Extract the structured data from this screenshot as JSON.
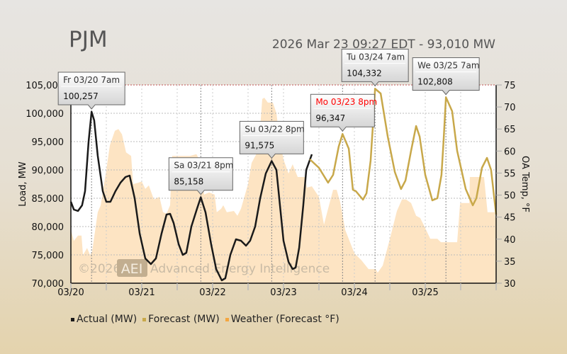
{
  "header": {
    "title": "PJM",
    "subtitle": "2026 Mar 23 09:27 EDT - 93,010 MW"
  },
  "watermark": {
    "copyright": "©2026",
    "logo": "AEI",
    "name": "Advanced Energy Intelligence"
  },
  "chart_data": {
    "type": "line",
    "ylabel": "Load, MW",
    "y2label": "OA Temp, °F",
    "ylim": [
      70000,
      105000
    ],
    "y2lim": [
      30,
      75
    ],
    "xlim_hours": [
      0,
      144
    ],
    "y_ticks": [
      "70,000",
      "75,000",
      "80,000",
      "85,000",
      "90,000",
      "95,000",
      "100,000",
      "105,000"
    ],
    "y2_ticks": [
      "30",
      "35",
      "40",
      "45",
      "50",
      "55",
      "60",
      "65",
      "70",
      "75"
    ],
    "x_ticks": [
      "03/20",
      "03/21",
      "03/22",
      "03/23",
      "03/24",
      "03/25"
    ],
    "legend": [
      "Actual (MW)",
      "Forecast (MW)",
      "Weather (Forecast °F)"
    ],
    "colors": {
      "actual": "#1a1a1a",
      "forecast": "#c8a84a",
      "weather": "#fde4c3",
      "weather_legend": "#f4a640",
      "highlight": "#ff0000"
    },
    "series": [
      {
        "name": "Actual (MW)",
        "points": [
          [
            0,
            84375
          ],
          [
            1,
            83000
          ],
          [
            2.4,
            82750
          ],
          [
            3.8,
            83750
          ],
          [
            4.8,
            86250
          ],
          [
            6,
            95000
          ],
          [
            7,
            100257
          ],
          [
            7.9,
            98750
          ],
          [
            9.1,
            92500
          ],
          [
            10.8,
            86250
          ],
          [
            12,
            84375
          ],
          [
            13.4,
            84375
          ],
          [
            15.1,
            86250
          ],
          [
            16.8,
            87750
          ],
          [
            18.5,
            88750
          ],
          [
            19.9,
            89000
          ],
          [
            21.6,
            85000
          ],
          [
            23.3,
            78750
          ],
          [
            25.2,
            74375
          ],
          [
            27.1,
            73375
          ],
          [
            28.8,
            74375
          ],
          [
            30.7,
            78750
          ],
          [
            32.4,
            82125
          ],
          [
            33.6,
            82250
          ],
          [
            34.8,
            80625
          ],
          [
            36.5,
            76875
          ],
          [
            37.9,
            75000
          ],
          [
            39.1,
            75375
          ],
          [
            40.8,
            80000
          ],
          [
            42.7,
            83125
          ],
          [
            44,
            85158
          ],
          [
            45.6,
            82500
          ],
          [
            47.5,
            76875
          ],
          [
            49.2,
            72500
          ],
          [
            51.1,
            70500
          ],
          [
            52.3,
            70875
          ],
          [
            54,
            75000
          ],
          [
            55.9,
            77750
          ],
          [
            57.6,
            77500
          ],
          [
            59.3,
            76625
          ],
          [
            60.7,
            77500
          ],
          [
            62.4,
            80000
          ],
          [
            64.1,
            85000
          ],
          [
            66,
            89375
          ],
          [
            68,
            91575
          ],
          [
            69.6,
            90000
          ],
          [
            70.8,
            83750
          ],
          [
            72,
            77500
          ],
          [
            73.7,
            73750
          ],
          [
            75.1,
            72500
          ],
          [
            76.1,
            72750
          ],
          [
            77.3,
            76250
          ],
          [
            78.7,
            83750
          ],
          [
            79.7,
            90000
          ],
          [
            81.6,
            92750
          ]
        ]
      },
      {
        "name": "Forecast (MW)",
        "points": [
          [
            80.9,
            91875
          ],
          [
            84,
            90375
          ],
          [
            87.1,
            87750
          ],
          [
            88.8,
            89125
          ],
          [
            90.7,
            94125
          ],
          [
            92,
            96347
          ],
          [
            94.1,
            93750
          ],
          [
            95.5,
            86500
          ],
          [
            96.5,
            86250
          ],
          [
            98.9,
            84750
          ],
          [
            100.1,
            85875
          ],
          [
            101.5,
            91625
          ],
          [
            102.7,
            101250
          ],
          [
            103,
            104332
          ],
          [
            104.9,
            103500
          ],
          [
            107.3,
            95875
          ],
          [
            109.7,
            89625
          ],
          [
            111.8,
            86625
          ],
          [
            113.3,
            88125
          ],
          [
            115.2,
            93375
          ],
          [
            116.9,
            97750
          ],
          [
            118.1,
            95875
          ],
          [
            120,
            89125
          ],
          [
            122.4,
            84625
          ],
          [
            124.1,
            85000
          ],
          [
            125.5,
            89125
          ],
          [
            126.2,
            95000
          ],
          [
            127,
            102808
          ],
          [
            129.1,
            100375
          ],
          [
            130.8,
            93375
          ],
          [
            133.7,
            86625
          ],
          [
            136.1,
            83750
          ],
          [
            137.3,
            85000
          ],
          [
            139.2,
            90375
          ],
          [
            140.9,
            92125
          ],
          [
            142.3,
            90000
          ],
          [
            144,
            82125
          ]
        ]
      },
      {
        "name": "Weather (Forecast °F)",
        "axis": "y2",
        "points": [
          [
            0,
            42.1
          ],
          [
            1,
            39.6
          ],
          [
            2.4,
            40.8
          ],
          [
            3.6,
            40.8
          ],
          [
            4.1,
            36.4
          ],
          [
            5.5,
            38
          ],
          [
            6.5,
            36.4
          ],
          [
            7.2,
            37.2
          ],
          [
            9.1,
            46.1
          ],
          [
            10.1,
            47.7
          ],
          [
            12,
            55.7
          ],
          [
            13.2,
            61.3
          ],
          [
            14.9,
            64.6
          ],
          [
            16.1,
            65
          ],
          [
            17.3,
            63.8
          ],
          [
            18.7,
            59.7
          ],
          [
            20.4,
            58.9
          ],
          [
            21.1,
            52.5
          ],
          [
            22.8,
            52.8
          ],
          [
            24,
            53.1
          ],
          [
            25.2,
            51.4
          ],
          [
            26.4,
            52.2
          ],
          [
            28.1,
            49
          ],
          [
            30,
            49.6
          ],
          [
            31.2,
            46.1
          ],
          [
            32.4,
            45.8
          ],
          [
            33.6,
            47.7
          ],
          [
            34.3,
            58.9
          ],
          [
            40.3,
            58.9
          ],
          [
            42.5,
            59.3
          ],
          [
            43.9,
            57.6
          ],
          [
            45.1,
            50.1
          ],
          [
            46.8,
            50.6
          ],
          [
            48.7,
            50.1
          ],
          [
            49.4,
            46.1
          ],
          [
            50.9,
            46.9
          ],
          [
            51.6,
            47.7
          ],
          [
            52.8,
            46.1
          ],
          [
            55.2,
            46.4
          ],
          [
            56.4,
            45.3
          ],
          [
            57.6,
            46.9
          ],
          [
            60,
            52.5
          ],
          [
            61.2,
            57.3
          ],
          [
            63.1,
            59.7
          ],
          [
            64.1,
            65.4
          ],
          [
            64.8,
            71.8
          ],
          [
            65.5,
            72.1
          ],
          [
            66.7,
            71
          ],
          [
            68.4,
            71
          ],
          [
            69.6,
            68.6
          ],
          [
            70.8,
            62.1
          ],
          [
            72,
            58.1
          ],
          [
            73.7,
            54.9
          ],
          [
            75.1,
            57
          ],
          [
            76.8,
            54.1
          ],
          [
            79.2,
            54.1
          ],
          [
            79.9,
            51.7
          ],
          [
            81.6,
            52
          ],
          [
            84,
            49.6
          ],
          [
            85.7,
            43.3
          ],
          [
            86.9,
            46.4
          ],
          [
            88.8,
            51.2
          ],
          [
            90,
            51.2
          ],
          [
            91.2,
            48.4
          ],
          [
            92.9,
            42.1
          ],
          [
            96,
            36.8
          ],
          [
            98.4,
            35.2
          ],
          [
            100.8,
            33.2
          ],
          [
            103.2,
            33.2
          ],
          [
            103.9,
            32.4
          ],
          [
            105.6,
            34
          ],
          [
            108,
            40
          ],
          [
            110.4,
            46.4
          ],
          [
            112.1,
            49
          ],
          [
            113.5,
            49
          ],
          [
            115.2,
            48.2
          ],
          [
            116.9,
            45.3
          ],
          [
            118.3,
            44.8
          ],
          [
            120,
            42.5
          ],
          [
            121.7,
            40.1
          ],
          [
            124.1,
            40.1
          ],
          [
            125.3,
            39.3
          ],
          [
            130.8,
            39.3
          ],
          [
            131.8,
            48.2
          ],
          [
            134.9,
            48.2
          ],
          [
            135.1,
            54.1
          ],
          [
            139.9,
            54.1
          ],
          [
            141.1,
            46.1
          ],
          [
            143.5,
            46.1
          ],
          [
            144,
            44.2
          ]
        ]
      }
    ],
    "annotations": [
      {
        "label": "Fr 03/20 7am",
        "value": "100,257",
        "hour": 7,
        "mw": 100257,
        "highlight": false
      },
      {
        "label": "Sa 03/21 8pm",
        "value": "85,158",
        "hour": 44,
        "mw": 85158,
        "highlight": false
      },
      {
        "label": "Su 03/22 8pm",
        "value": "91,575",
        "hour": 68,
        "mw": 91575,
        "highlight": false
      },
      {
        "label": "Mo 03/23 8pm",
        "value": "96,347",
        "hour": 92,
        "mw": 96347,
        "highlight": true
      },
      {
        "label": "Tu 03/24 7am",
        "value": "104,332",
        "hour": 103,
        "mw": 104332,
        "highlight": false
      },
      {
        "label": "We 03/25 7am",
        "value": "102,808",
        "hour": 127,
        "mw": 102808,
        "highlight": false
      }
    ]
  }
}
